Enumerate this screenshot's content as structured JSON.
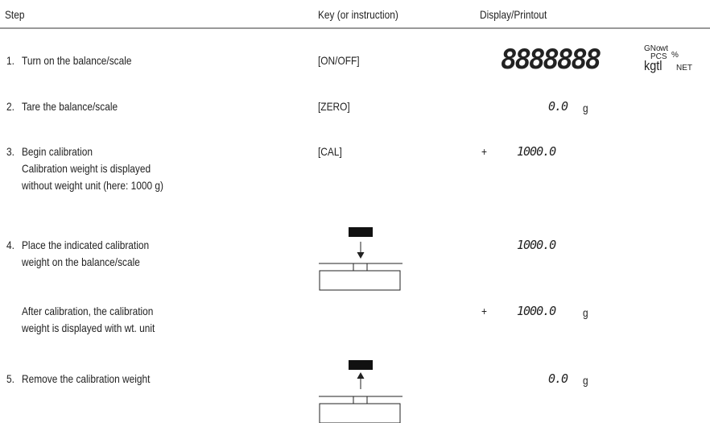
{
  "header": {
    "step": "Step",
    "key": "Key (or instruction)",
    "display": "Display/Printout"
  },
  "rows": [
    {
      "number": "1.",
      "step": [
        "Turn on the balance/scale"
      ],
      "key": "[ON/OFF]",
      "display": {
        "digits": "8888888",
        "units": "kgtl",
        "annunciators": [
          "GNo",
          "wt",
          "PCS",
          "%",
          "NET"
        ]
      }
    },
    {
      "number": "2.",
      "step": [
        "Tare the balance/scale"
      ],
      "key": "[ZERO]",
      "display": {
        "value": "0.0",
        "unit": "g"
      }
    },
    {
      "number": "3.",
      "step": [
        "Begin calibration",
        "Calibration weight is displayed",
        "without weight unit (here: 1000 g)"
      ],
      "key": "[CAL]",
      "display": {
        "sign": "+",
        "value": "1000.0"
      }
    },
    {
      "number": "4.",
      "step": [
        "Place the indicated calibration",
        "weight on the balance/scale"
      ],
      "display": {
        "value": "1000.0"
      }
    },
    {
      "step": [
        "After calibration, the calibration",
        "weight is displayed with wt. unit"
      ],
      "display": {
        "sign": "+",
        "value": "1000.0",
        "unit": "g"
      }
    },
    {
      "number": "5.",
      "step": [
        "Remove the calibration weight"
      ],
      "display": {
        "value": "0.0",
        "unit": "g"
      }
    }
  ]
}
